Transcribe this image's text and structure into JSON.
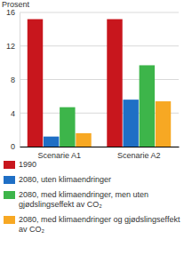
{
  "chart_data": {
    "type": "bar",
    "y_label": "Prosent",
    "categories": [
      "Scenarie A1",
      "Scenarie A2"
    ],
    "series": [
      {
        "name": "1990",
        "color": "#c8161d",
        "values": [
          15.2,
          15.2
        ]
      },
      {
        "name": "2080, uten klimaendringer",
        "color": "#1f6fc5",
        "values": [
          1.2,
          5.6
        ]
      },
      {
        "name": "2080, med klimaendringer, men uten gjødslingseffekt av CO₂",
        "color": "#3db54a",
        "values": [
          4.7,
          9.7
        ]
      },
      {
        "name": "2080, med klimaendringer og gjødslingseffekt av CO₂",
        "color": "#f7a823",
        "values": [
          1.6,
          5.4
        ]
      }
    ],
    "ylim": [
      0,
      16
    ],
    "yticks": [
      0,
      4,
      8,
      12,
      16
    ],
    "grid": true,
    "legend": "bottom"
  }
}
